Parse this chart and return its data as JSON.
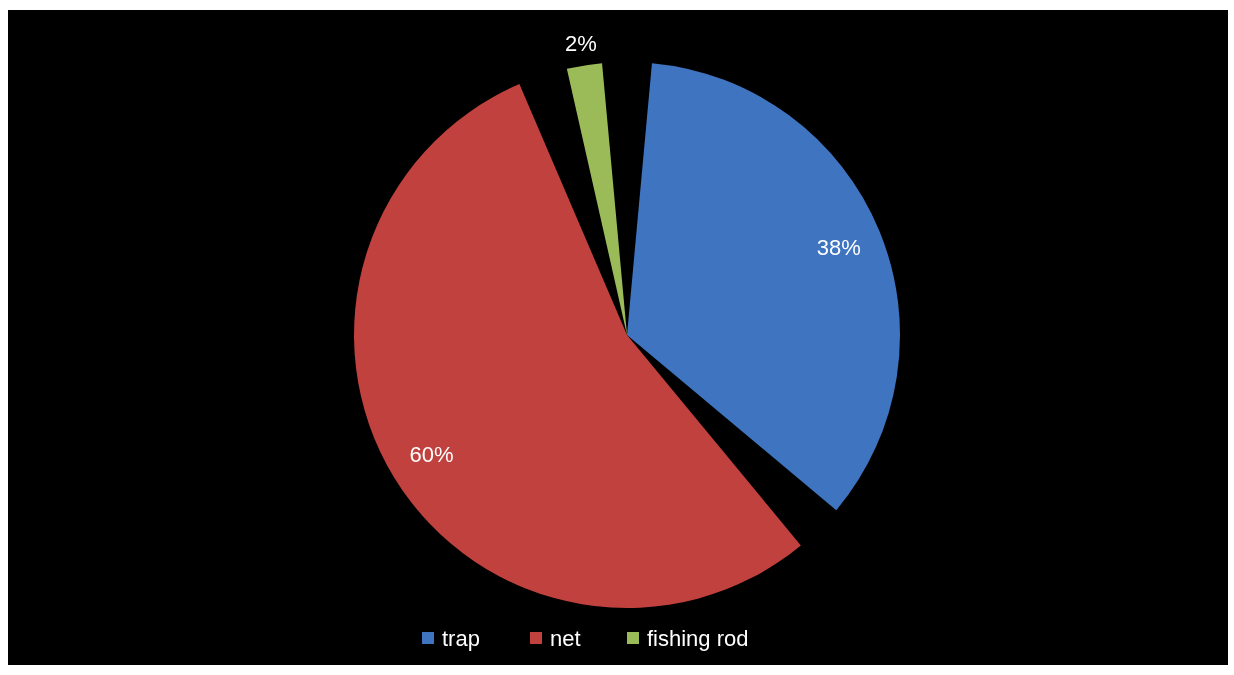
{
  "chart_data": {
    "type": "pie",
    "categories": [
      "trap",
      "net",
      "fishing rod"
    ],
    "values": [
      38,
      60,
      2
    ],
    "colors": [
      "#3f74c0",
      "#c0413d",
      "#9bbb59"
    ],
    "value_labels": [
      "38%",
      "60%",
      "2%"
    ],
    "legend": "bottom"
  }
}
